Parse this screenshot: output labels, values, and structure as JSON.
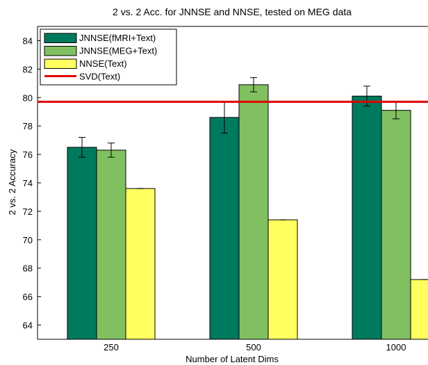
{
  "chart_data": {
    "type": "bar",
    "title": "2 vs. 2 Acc. for JNNSE and NNSE, tested on MEG data",
    "xlabel": "Number of Latent Dims",
    "ylabel": "2 vs. 2 Accuracy",
    "categories": [
      "250",
      "500",
      "1000"
    ],
    "ylim": [
      63,
      85
    ],
    "yticks": [
      64,
      66,
      68,
      70,
      72,
      74,
      76,
      78,
      80,
      82,
      84
    ],
    "grid": false,
    "legend_position": "top-left",
    "series": [
      {
        "name": "JNNSE(fMRI+Text)",
        "color": "#007a5e",
        "values": [
          76.5,
          78.6,
          80.1
        ],
        "errors": [
          0.7,
          1.1,
          0.7
        ]
      },
      {
        "name": "JNNSE(MEG+Text)",
        "color": "#80c060",
        "values": [
          76.3,
          80.9,
          79.1
        ],
        "errors": [
          0.5,
          0.5,
          0.6
        ]
      },
      {
        "name": "NNSE(Text)",
        "color": "#ffff60",
        "values": [
          73.6,
          71.4,
          67.2
        ],
        "errors": [
          0,
          0,
          0
        ]
      }
    ],
    "reference_line": {
      "name": "SVD(Text)",
      "value": 79.7,
      "color": "#e00000"
    }
  }
}
